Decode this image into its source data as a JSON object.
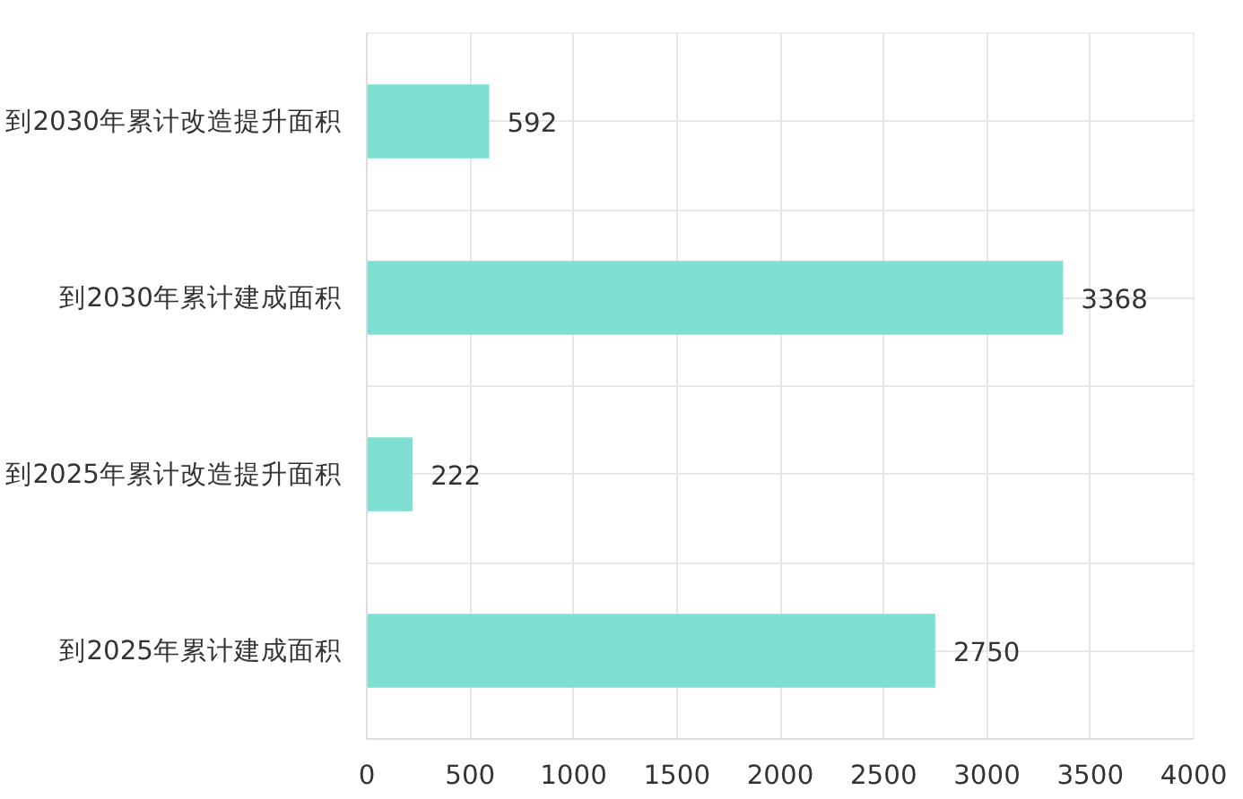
{
  "chart_data": {
    "type": "bar",
    "orientation": "horizontal",
    "categories": [
      "到2030年累计改造提升面积",
      "到2030年累计建成面积",
      "到2025年累计改造提升面积",
      "到2025年累计建成面积"
    ],
    "values": [
      592,
      3368,
      222,
      2750
    ],
    "color": "#7edfd2",
    "xlim": [
      0,
      4000
    ],
    "xticks": [
      0,
      500,
      1000,
      1500,
      2000,
      2500,
      3000,
      3500,
      4000
    ],
    "grid": true,
    "data_labels": true
  }
}
